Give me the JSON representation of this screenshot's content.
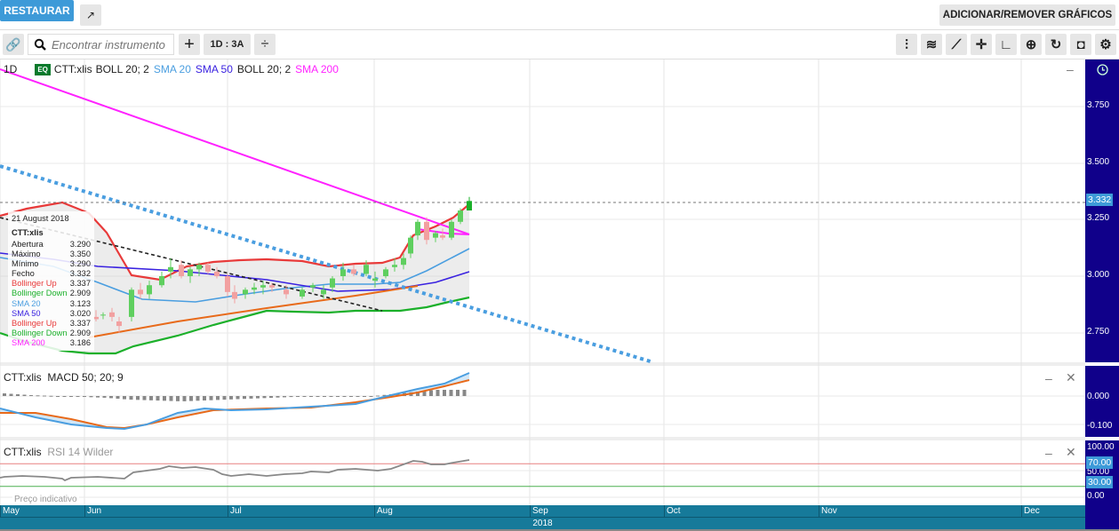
{
  "header": {
    "restore_label": "RESTAURAR",
    "add_remove_label": "ADICIONAR/REMOVER GRÁFICOS"
  },
  "toolbar": {
    "search_placeholder": "Encontrar instrumento",
    "period_label": "1D : 3A",
    "tools": [
      "candles-icon",
      "indicators-icon",
      "line-draw-icon",
      "crosshair-icon",
      "curve-icon",
      "zoom-in-icon",
      "refresh-icon",
      "camera-icon",
      "gear-icon"
    ]
  },
  "chart": {
    "interval": "1D",
    "type_badge": "EQ",
    "symbol": "CTT:xlis",
    "indicators": [
      {
        "label": "BOLL 20; 2",
        "color": "#222222"
      },
      {
        "label": "SMA 20",
        "color": "#4a9ee0"
      },
      {
        "label": "SMA 50",
        "color": "#3a22e0"
      },
      {
        "label": "BOLL 20; 2",
        "color": "#222222"
      },
      {
        "label": "SMA 200",
        "color": "#ff22ff"
      }
    ],
    "price_ticks": [
      "3.750",
      "3.500",
      "3.250",
      "3.000",
      "2.750"
    ],
    "last_price": "3.332",
    "last_price_value": 3.332,
    "tooltip": {
      "date": "21 August 2018",
      "symbol": "CTT:xlis",
      "rows": [
        {
          "label": "Abertura",
          "value": "3.290",
          "color": "#222222"
        },
        {
          "label": "Máximo",
          "value": "3.350",
          "color": "#222222"
        },
        {
          "label": "Mínimo",
          "value": "3.290",
          "color": "#222222"
        },
        {
          "label": "Fecho",
          "value": "3.332",
          "color": "#222222"
        },
        {
          "label": "Bollinger Up",
          "value": "3.337",
          "color": "#e83a3a"
        },
        {
          "label": "Bollinger Down",
          "value": "2.909",
          "color": "#1bb02a"
        },
        {
          "label": "SMA 20",
          "value": "3.123",
          "color": "#4a9ee0"
        },
        {
          "label": "SMA 50",
          "value": "3.020",
          "color": "#3a22e0"
        },
        {
          "label": "Bollinger Up",
          "value": "3.337",
          "color": "#e83a3a"
        },
        {
          "label": "Bollinger Down",
          "value": "2.909",
          "color": "#1bb02a"
        },
        {
          "label": "SMA 200",
          "value": "3.186",
          "color": "#ff22ff"
        }
      ]
    }
  },
  "macd": {
    "symbol": "CTT:xlis",
    "label": "MACD 50; 20; 9",
    "ticks": [
      "0.000",
      "-0.100"
    ]
  },
  "rsi": {
    "symbol": "CTT:xlis",
    "label": "RSI 14 Wilder",
    "ticks": [
      "100.00",
      "70.00",
      "50.00",
      "30.00",
      "0.00"
    ],
    "upper": 70,
    "lower": 30,
    "note": "Preço indicativo"
  },
  "time_axis": {
    "months": [
      "May",
      "Jun",
      "Jul",
      "Aug",
      "Sep",
      "Oct",
      "Nov",
      "Dec"
    ],
    "year": "2018"
  },
  "colors": {
    "axis_bg": "#10008a",
    "time_bg": "#167a9a",
    "accent": "#3d9ad8",
    "up": "#1bb02a",
    "down": "#e83a3a"
  }
}
